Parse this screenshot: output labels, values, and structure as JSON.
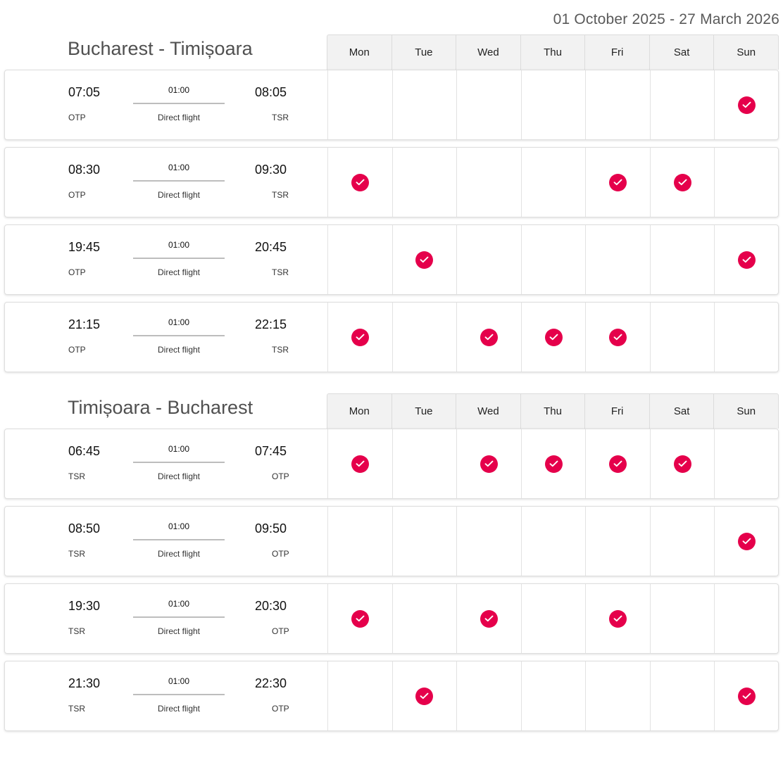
{
  "date_range": "01 October 2025 - 27 March 2026",
  "days": [
    "Mon",
    "Tue",
    "Wed",
    "Thu",
    "Fri",
    "Sat",
    "Sun"
  ],
  "colors": {
    "accent": "#e5004b",
    "header_bg": "#f2f2f2"
  },
  "icons": {
    "operates": "check-circle-icon"
  },
  "sections": [
    {
      "route": "Bucharest - Timișoara",
      "flights": [
        {
          "dep_time": "07:05",
          "dep_code": "OTP",
          "duration": "01:00",
          "type": "Direct flight",
          "arr_time": "08:05",
          "arr_code": "TSR",
          "days": [
            false,
            false,
            false,
            false,
            false,
            false,
            true
          ]
        },
        {
          "dep_time": "08:30",
          "dep_code": "OTP",
          "duration": "01:00",
          "type": "Direct flight",
          "arr_time": "09:30",
          "arr_code": "TSR",
          "days": [
            true,
            false,
            false,
            false,
            true,
            true,
            false
          ]
        },
        {
          "dep_time": "19:45",
          "dep_code": "OTP",
          "duration": "01:00",
          "type": "Direct flight",
          "arr_time": "20:45",
          "arr_code": "TSR",
          "days": [
            false,
            true,
            false,
            false,
            false,
            false,
            true
          ]
        },
        {
          "dep_time": "21:15",
          "dep_code": "OTP",
          "duration": "01:00",
          "type": "Direct flight",
          "arr_time": "22:15",
          "arr_code": "TSR",
          "days": [
            true,
            false,
            true,
            true,
            true,
            false,
            false
          ]
        }
      ]
    },
    {
      "route": "Timișoara - Bucharest",
      "flights": [
        {
          "dep_time": "06:45",
          "dep_code": "TSR",
          "duration": "01:00",
          "type": "Direct flight",
          "arr_time": "07:45",
          "arr_code": "OTP",
          "days": [
            true,
            false,
            true,
            true,
            true,
            true,
            false
          ]
        },
        {
          "dep_time": "08:50",
          "dep_code": "TSR",
          "duration": "01:00",
          "type": "Direct flight",
          "arr_time": "09:50",
          "arr_code": "OTP",
          "days": [
            false,
            false,
            false,
            false,
            false,
            false,
            true
          ]
        },
        {
          "dep_time": "19:30",
          "dep_code": "TSR",
          "duration": "01:00",
          "type": "Direct flight",
          "arr_time": "20:30",
          "arr_code": "OTP",
          "days": [
            true,
            false,
            true,
            false,
            true,
            false,
            false
          ]
        },
        {
          "dep_time": "21:30",
          "dep_code": "TSR",
          "duration": "01:00",
          "type": "Direct flight",
          "arr_time": "22:30",
          "arr_code": "OTP",
          "days": [
            false,
            true,
            false,
            false,
            false,
            false,
            true
          ]
        }
      ]
    }
  ]
}
